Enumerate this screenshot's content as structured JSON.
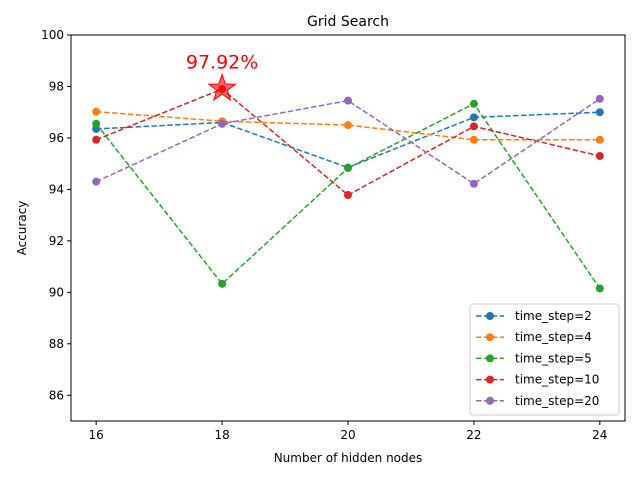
{
  "chart_data": {
    "type": "line",
    "title": "Grid Search",
    "xlabel": "Number of hidden nodes",
    "ylabel": "Accuracy",
    "x": [
      16,
      18,
      20,
      22,
      24
    ],
    "xticks": [
      "16",
      "18",
      "20",
      "22",
      "24"
    ],
    "xlim": [
      15.6,
      24.4
    ],
    "ylim": [
      85,
      100
    ],
    "yticks": [
      "86",
      "88",
      "90",
      "92",
      "94",
      "96",
      "98",
      "100"
    ],
    "grid": false,
    "legend_position": "bottom-right",
    "line_style": "dashed",
    "marker": "circle",
    "series": [
      {
        "name": "time_step=2",
        "color": "#1f77b4",
        "values": [
          96.35,
          96.6,
          94.85,
          96.8,
          97.0
        ]
      },
      {
        "name": "time_step=4",
        "color": "#ff7f0e",
        "values": [
          97.02,
          96.65,
          96.5,
          95.93,
          95.93
        ]
      },
      {
        "name": "time_step=5",
        "color": "#2ca02c",
        "values": [
          96.55,
          90.33,
          94.83,
          97.33,
          90.15
        ]
      },
      {
        "name": "time_step=10",
        "color": "#d62728",
        "values": [
          95.93,
          97.9,
          93.78,
          96.45,
          95.3
        ]
      },
      {
        "name": "time_step=20",
        "color": "#9467bd",
        "values": [
          94.3,
          96.55,
          97.45,
          94.22,
          97.52
        ]
      }
    ],
    "annotation": {
      "text": "97.92%",
      "x": 18,
      "y": 97.92,
      "color": "#ff0000",
      "marker": "star"
    }
  }
}
